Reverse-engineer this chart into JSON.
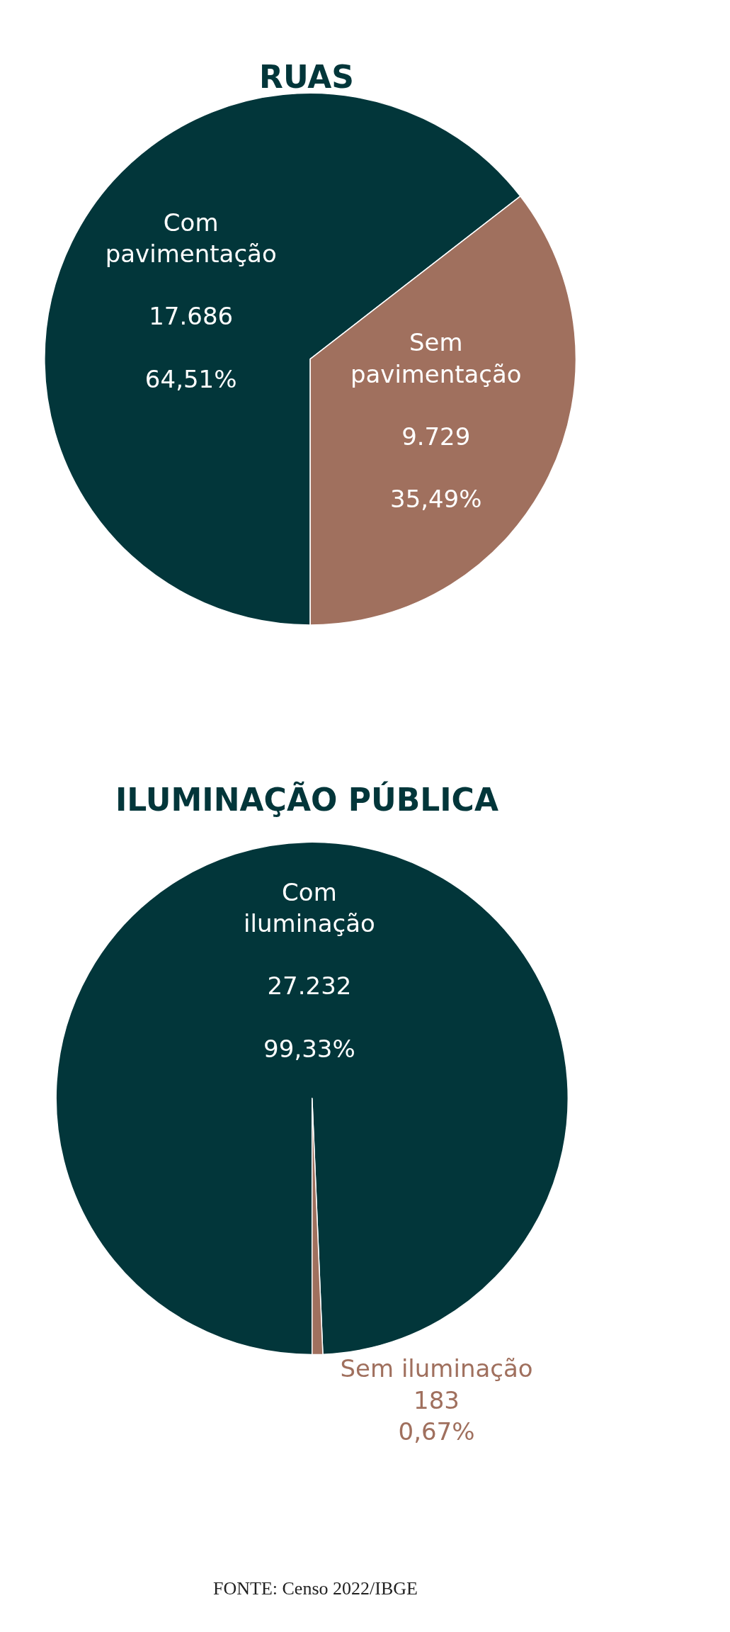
{
  "chart_data": [
    {
      "type": "pie",
      "title": "RUAS",
      "categories": [
        "Com\npavimentação",
        "Sem\npavimentação"
      ],
      "values": [
        64.51,
        35.49
      ],
      "value_labels": [
        "17.686\n64,51%",
        "9.729\n35,49%"
      ],
      "colors": [
        "#02363a",
        "#a0705e"
      ]
    },
    {
      "type": "pie",
      "title": "ILUMINAÇÃO PÚBLICA",
      "categories": [
        "Com\niluminação",
        "Sem iluminação"
      ],
      "values": [
        99.33,
        0.67
      ],
      "value_labels": [
        "27.232\n99,33%",
        "183\n0,67%"
      ],
      "colors": [
        "#02363a",
        "#a0705e"
      ],
      "annotations": [
        "FONTE: Censo 2022/IBGE"
      ]
    }
  ]
}
